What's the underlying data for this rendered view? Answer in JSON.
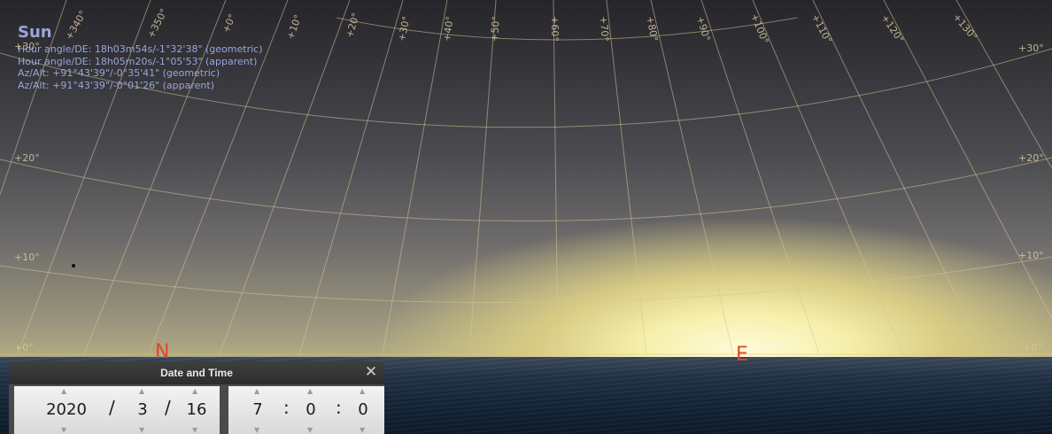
{
  "object_info": {
    "title": "Sun",
    "lines": [
      "Hour angle/DE: 18h03m54s/-1°32'38\" (geometric)",
      "Hour angle/DE: 18h05m20s/-1°05'53\" (apparent)",
      "Az/Alt: +91°43'39\"/-0°35'41\" (geometric)",
      "Az/Alt: +91°43'39\"/-0°01'26\" (apparent)"
    ]
  },
  "grid_labels": {
    "altitude": [
      "+30°",
      "+20°",
      "+10°",
      "+0°"
    ],
    "azimuth": [
      "+340°",
      "+350°",
      "+0°",
      "+10°",
      "+20°",
      "+30°",
      "+40°",
      "+50°",
      "+60°",
      "+70°",
      "+80°",
      "+90°",
      "+100°",
      "+110°",
      "+120°",
      "+130°"
    ]
  },
  "compass": {
    "north": "N",
    "east": "E"
  },
  "sun_label": "Sun",
  "date_time": {
    "title": "Date and Time",
    "close": "✕",
    "year": "2020",
    "month": "3",
    "day": "16",
    "hour": "7",
    "minute": "0",
    "second": "0",
    "date_sep": "/",
    "time_sep": ":",
    "up_arrow": "▲",
    "down_arrow": "▼"
  },
  "colors": {
    "info_text": "#9aa6da",
    "compass": "#e0482a",
    "grid": "#d8c598"
  }
}
